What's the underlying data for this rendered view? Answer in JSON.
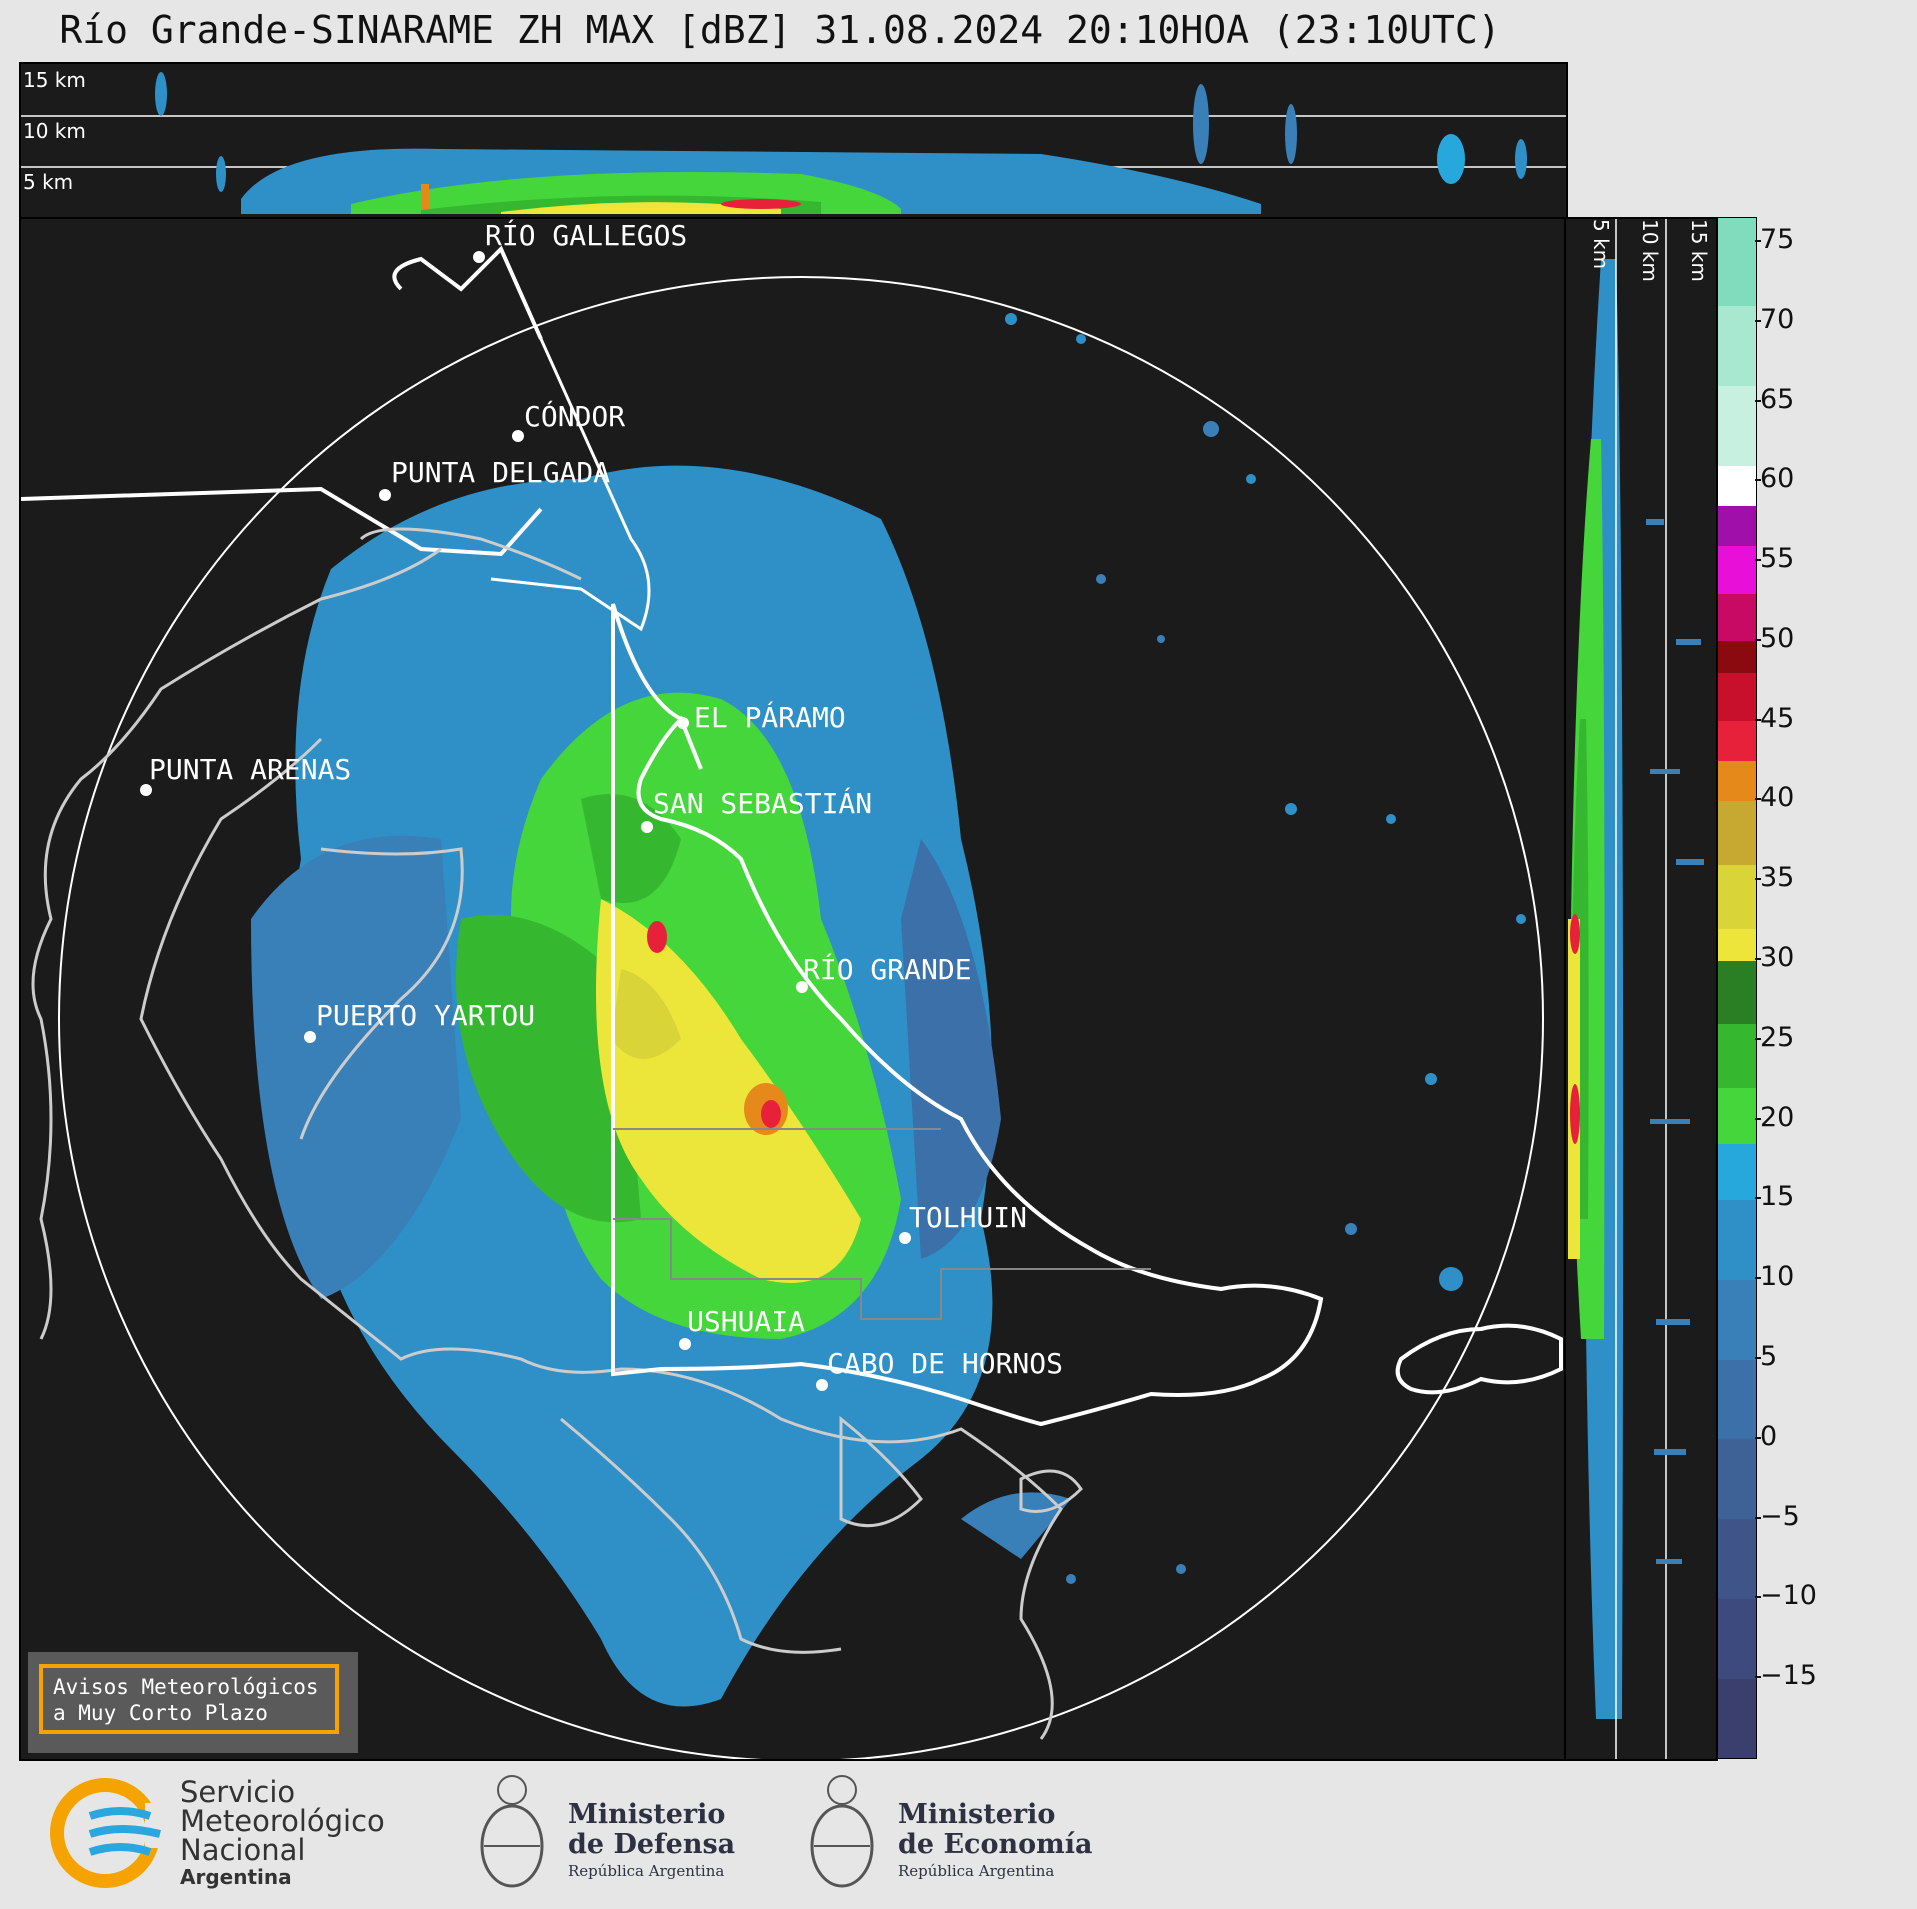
{
  "title": "Río Grande-SINARAME ZH MAX [dBZ] 31.08.2024 20:10HOA (23:10UTC)",
  "altitude_labels": [
    "15 km",
    "10 km",
    "5 km"
  ],
  "side_altitude_labels": [
    "5 km",
    "10 km",
    "15 km"
  ],
  "colorbar": {
    "ticks": [
      "75",
      "70",
      "65",
      "60",
      "55",
      "50",
      "45",
      "40",
      "35",
      "30",
      "25",
      "20",
      "15",
      "10",
      "5",
      "0",
      "−5",
      "−10",
      "−15"
    ],
    "min": -20,
    "max": 76.5,
    "colors": [
      {
        "from": -20,
        "to": -15,
        "color": "#3a3f6e"
      },
      {
        "from": -15,
        "to": -10,
        "color": "#3d4a7d"
      },
      {
        "from": -10,
        "to": -5,
        "color": "#3f558a"
      },
      {
        "from": -5,
        "to": 0,
        "color": "#3e6196"
      },
      {
        "from": 0,
        "to": 5,
        "color": "#3b70a8"
      },
      {
        "from": 5,
        "to": 10,
        "color": "#3a80b8"
      },
      {
        "from": 10,
        "to": 15,
        "color": "#2f90c8"
      },
      {
        "from": 15,
        "to": 18.5,
        "color": "#27a8dc"
      },
      {
        "from": 18.5,
        "to": 22,
        "color": "#44d63a"
      },
      {
        "from": 22,
        "to": 26,
        "color": "#35b830"
      },
      {
        "from": 26,
        "to": 30,
        "color": "#2a7f23"
      },
      {
        "from": 30,
        "to": 32,
        "color": "#ede63a"
      },
      {
        "from": 32,
        "to": 36,
        "color": "#d9d437"
      },
      {
        "from": 36,
        "to": 40,
        "color": "#c7a932"
      },
      {
        "from": 40,
        "to": 42.5,
        "color": "#e58a1a"
      },
      {
        "from": 42.5,
        "to": 45,
        "color": "#e8213b"
      },
      {
        "from": 45,
        "to": 48,
        "color": "#c8102a"
      },
      {
        "from": 48,
        "to": 50,
        "color": "#8b0a10"
      },
      {
        "from": 50,
        "to": 53,
        "color": "#c80a64"
      },
      {
        "from": 53,
        "to": 56,
        "color": "#e810d8"
      },
      {
        "from": 56,
        "to": 58.5,
        "color": "#a010a8"
      },
      {
        "from": 58.5,
        "to": 61,
        "color": "#ffffff"
      },
      {
        "from": 61,
        "to": 66,
        "color": "#c8f0e0"
      },
      {
        "from": 66,
        "to": 71,
        "color": "#a8e8d0"
      },
      {
        "from": 71,
        "to": 76.5,
        "color": "#80dcbc"
      }
    ]
  },
  "cities": [
    {
      "name": "RÍO GALLEGOS",
      "id": "rio-gallegos"
    },
    {
      "name": "CÓNDOR",
      "id": "condor"
    },
    {
      "name": "PUNTA DELGADA",
      "id": "punta-delgada"
    },
    {
      "name": "EL PÁRAMO",
      "id": "el-paramo"
    },
    {
      "name": "PUNTA ARENAS",
      "id": "punta-arenas"
    },
    {
      "name": "SAN SEBASTIÁN",
      "id": "san-sebastian"
    },
    {
      "name": "RÍO GRANDE",
      "id": "rio-grande"
    },
    {
      "name": "PUERTO YARTOU",
      "id": "puerto-yartou"
    },
    {
      "name": "TOLHUIN",
      "id": "tolhuin"
    },
    {
      "name": "USHUAIA",
      "id": "ushuaia"
    },
    {
      "name": "CABO DE HORNOS",
      "id": "cabo-de-hornos"
    }
  ],
  "alert": {
    "line1": "Avisos Meteorológicos",
    "line2": "a Muy Corto Plazo"
  },
  "logos": {
    "smn": {
      "line1": "Servicio",
      "line2": "Meteorológico",
      "line3": "Nacional",
      "line4": "Argentina",
      "accent": "#f5a300",
      "blue": "#2aa7df"
    },
    "defensa": {
      "line1": "Ministerio",
      "line2": "de Defensa",
      "line3": "República Argentina"
    },
    "economia": {
      "line1": "Ministerio",
      "line2": "de Economía",
      "line3": "República Argentina"
    }
  }
}
